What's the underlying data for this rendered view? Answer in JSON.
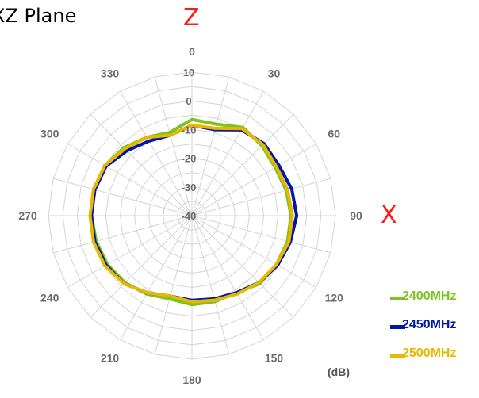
{
  "title": "XZ Plane",
  "axis_letters": {
    "top": "Z",
    "right": "X"
  },
  "unit": "(dB)",
  "colors": {
    "grid": "#d4d4d4",
    "tick_text": "#6b6b6b",
    "axis_letter": "#ff1a1a",
    "legend_2400": "#7dc31f",
    "legend_2450": "#0018a8",
    "legend_2500": "#e8b800"
  },
  "chart_data": {
    "type": "radar",
    "title": "XZ Plane",
    "radial_range": [
      -40,
      10
    ],
    "radial_ticks": [
      "10",
      "0",
      "-10",
      "-20",
      "-30",
      "-40"
    ],
    "radial_tick_values": [
      10,
      0,
      -10,
      -20,
      -30,
      -40
    ],
    "angle_tick_labels": [
      "0",
      "30",
      "60",
      "90",
      "120",
      "150",
      "180",
      "210",
      "240",
      "270",
      "300",
      "330"
    ],
    "angle_step_deg": 15,
    "angle_direction": "clockwise from top",
    "grid": true,
    "legend_position": "bottom-right",
    "angles": [
      0,
      15,
      30,
      45,
      60,
      75,
      90,
      105,
      120,
      135,
      150,
      165,
      180,
      195,
      210,
      225,
      240,
      255,
      270,
      285,
      300,
      315,
      330,
      345
    ],
    "series": [
      {
        "name": "2400MHz",
        "color": "#7dc31f",
        "values": [
          -6.5,
          -7,
          -4.5,
          -5.5,
          -6.5,
          -6,
          -5.5,
          -5.5,
          -6,
          -6.5,
          -9,
          -9,
          -9,
          -10,
          -8.5,
          -7,
          -6,
          -5.5,
          -5,
          -4.5,
          -5,
          -6.5,
          -8.5,
          -10
        ]
      },
      {
        "name": "2450MHz",
        "color": "#0018a8",
        "values": [
          -8.5,
          -9,
          -5.5,
          -4.5,
          -5,
          -4,
          -3.5,
          -4.5,
          -5.5,
          -7,
          -9,
          -10,
          -10.5,
          -11,
          -9,
          -6.5,
          -5.5,
          -5,
          -5,
          -5,
          -5.5,
          -8,
          -10,
          -11
        ]
      },
      {
        "name": "2500MHz",
        "color": "#e8b800",
        "values": [
          -8.5,
          -8.5,
          -5,
          -5,
          -6,
          -5.5,
          -5,
          -5,
          -6,
          -7,
          -8.5,
          -9.5,
          -10,
          -11,
          -9,
          -6.5,
          -5,
          -4.5,
          -4.5,
          -4.5,
          -5,
          -7,
          -8.5,
          -11
        ]
      }
    ]
  }
}
